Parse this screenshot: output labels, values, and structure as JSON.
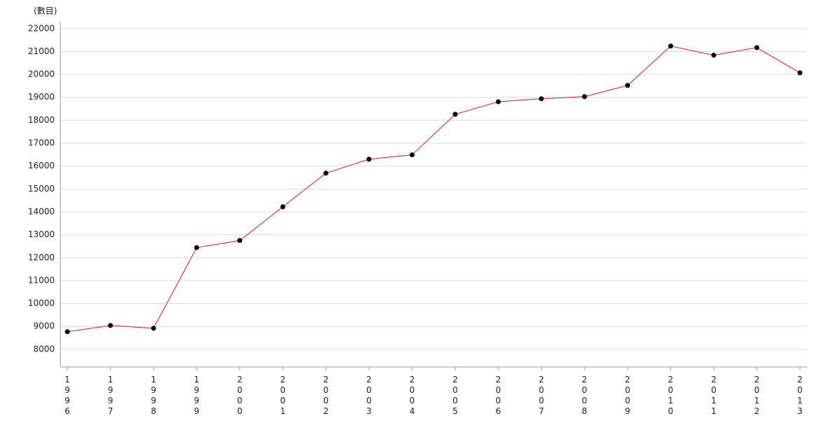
{
  "chart_data": {
    "type": "line",
    "y_label": "(數目)",
    "categories": [
      "1996",
      "1997",
      "1998",
      "1999",
      "2000",
      "2001",
      "2002",
      "2003",
      "2004",
      "2005",
      "2006",
      "2007",
      "2008",
      "2009",
      "2010",
      "2011",
      "2012",
      "2013"
    ],
    "series": [
      {
        "name": null,
        "color": "#dc143c",
        "marker_color": "#000000",
        "values": [
          8770,
          9040,
          8920,
          12440,
          12750,
          14220,
          15690,
          16300,
          16490,
          18260,
          18810,
          18940,
          19030,
          19520,
          21240,
          20840,
          21170,
          20070
        ]
      }
    ],
    "ylim": [
      7230,
      22300
    ],
    "yticks": [
      8000,
      9000,
      10000,
      11000,
      12000,
      13000,
      14000,
      15000,
      16000,
      17000,
      18000,
      19000,
      20000,
      21000,
      22000
    ],
    "grid": true
  }
}
